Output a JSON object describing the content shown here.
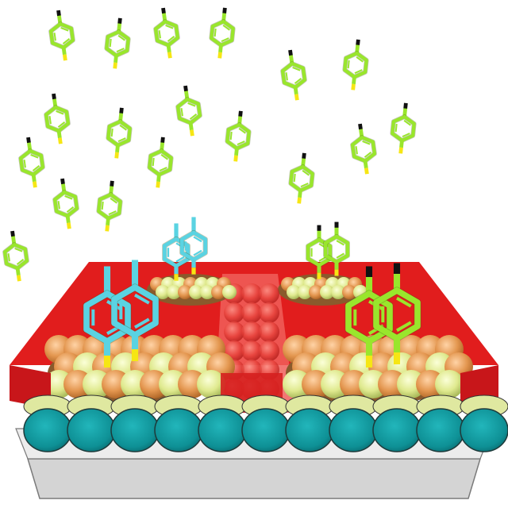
{
  "colors": {
    "background": "#ffffff",
    "substrate_top": "#e4e4e4",
    "substrate_front": "#cfcfcf",
    "teal_disk": "#0f9aa0",
    "teal_disk_dark": "#0a6f74",
    "teal_rim": "#d9e8a8",
    "mask_red": "#e31e1e",
    "mask_red_light": "#f04a44",
    "mask_red_dark": "#b10f12",
    "sphere_orange": "#e99b55",
    "sphere_yellow": "#e3f098",
    "molecule_green": "#99e62c",
    "molecule_cyan": "#5ad3e2",
    "tail_yellow": "#f6e614",
    "head_black": "#111111"
  },
  "icons": {
    "free_molecule": "benzene-ring-molecule-icon",
    "bound_molecule_cyan": "benzene-ring-molecule-icon",
    "bound_molecule_green": "benzene-ring-molecule-icon"
  },
  "scene": {
    "free_molecule_count": 18,
    "wells": 4,
    "cyan_pairs": 2,
    "green_pairs": 2
  }
}
